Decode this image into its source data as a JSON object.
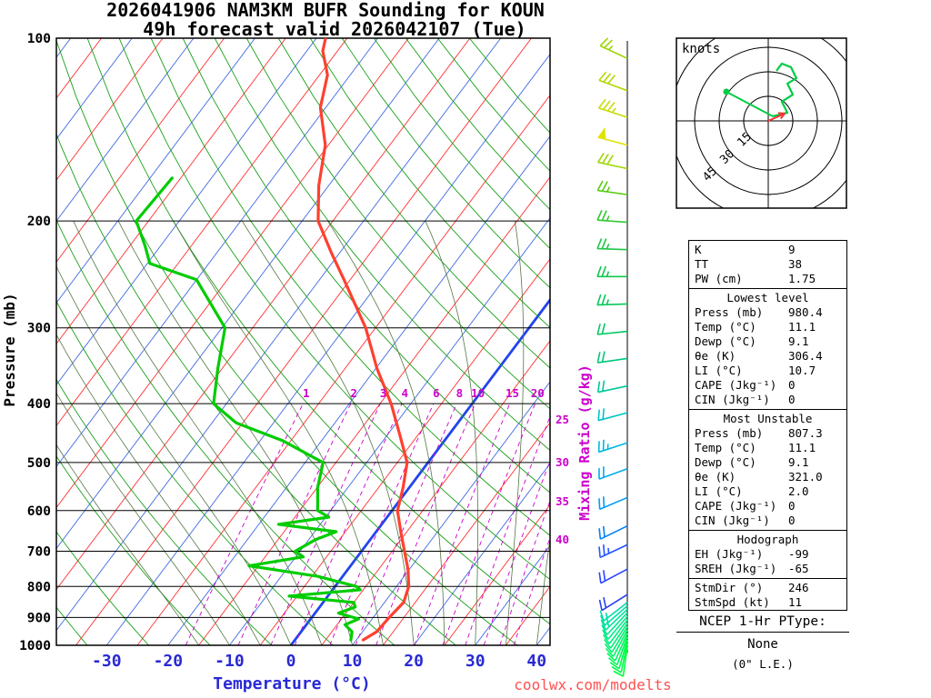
{
  "title": {
    "line1": "2026041906 NAM3KM BUFR Sounding for KOUN",
    "line2": "49h forecast valid 2026042107 (Tue)"
  },
  "axes": {
    "pressure_label": "Pressure (mb)",
    "temperature_label": "Temperature (°C)",
    "mixing_ratio_label": "Mixing Ratio (g/kg)",
    "pressure_ticks": [
      100,
      200,
      300,
      400,
      500,
      600,
      700,
      800,
      900,
      1000
    ],
    "temperature_ticks": [
      -30,
      -20,
      -10,
      0,
      10,
      20,
      30,
      40
    ],
    "mixing_ratio_values": [
      1,
      2,
      3,
      4,
      6,
      8,
      10,
      15,
      20,
      25,
      30,
      35,
      40
    ]
  },
  "colors": {
    "temperature_curve": "#ff4030",
    "dewpoint_curve": "#00cc00",
    "isotherm_red": "#ff3030",
    "isotherm_blue": "#4169e1",
    "zero_isotherm": "#2244ee",
    "dry_adiabat": "#18a018",
    "moist_adiabat": "#557744",
    "mixing_ratio": "#cc00cc",
    "axis_text_blue": "#2929d4",
    "watermark_red": "#ff5050",
    "barb_staff": "#000000"
  },
  "chart_data": {
    "type": "line",
    "title": "Skew-T log-P sounding with wind barbs and hodograph",
    "pressure_range_mb": [
      100,
      1000
    ],
    "temperature_range_c": [
      -30,
      40
    ],
    "temperature_profile": [
      [
        980,
        11.1
      ],
      [
        950,
        12.3
      ],
      [
        900,
        12.6
      ],
      [
        850,
        13.1
      ],
      [
        800,
        12.0
      ],
      [
        750,
        9.8
      ],
      [
        700,
        7.0
      ],
      [
        650,
        4.0
      ],
      [
        600,
        0.9
      ],
      [
        550,
        -1.0
      ],
      [
        500,
        -3.4
      ],
      [
        450,
        -8.0
      ],
      [
        400,
        -13.2
      ],
      [
        350,
        -19.8
      ],
      [
        300,
        -26.6
      ],
      [
        250,
        -36.0
      ],
      [
        225,
        -41.5
      ],
      [
        200,
        -47.4
      ],
      [
        175,
        -51.6
      ],
      [
        150,
        -55.5
      ],
      [
        130,
        -60.9
      ],
      [
        115,
        -63.7
      ],
      [
        105,
        -67.4
      ],
      [
        100,
        -68.5
      ]
    ],
    "dewpoint_profile": [
      [
        980,
        9.1
      ],
      [
        950,
        8.3
      ],
      [
        925,
        6.3
      ],
      [
        905,
        7.8
      ],
      [
        885,
        3.8
      ],
      [
        865,
        5.8
      ],
      [
        850,
        5.0
      ],
      [
        830,
        -6.3
      ],
      [
        810,
        4.5
      ],
      [
        800,
        3.5
      ],
      [
        770,
        -4.0
      ],
      [
        740,
        -16.5
      ],
      [
        715,
        -8.8
      ],
      [
        700,
        -10.8
      ],
      [
        670,
        -8.9
      ],
      [
        650,
        -6.5
      ],
      [
        632,
        -16.8
      ],
      [
        615,
        -9.5
      ],
      [
        600,
        -12.1
      ],
      [
        550,
        -14.9
      ],
      [
        500,
        -17.1
      ],
      [
        460,
        -26.4
      ],
      [
        430,
        -36.1
      ],
      [
        400,
        -42.1
      ],
      [
        350,
        -45.7
      ],
      [
        300,
        -49.5
      ],
      [
        250,
        -60.0
      ],
      [
        235,
        -69.6
      ],
      [
        220,
        -72.5
      ],
      [
        200,
        -77.0
      ],
      [
        170,
        -76.4
      ]
    ],
    "winds": [
      {
        "p": 108,
        "spd": 25,
        "dir": 295,
        "color": "#9cd600"
      },
      {
        "p": 122,
        "spd": 30,
        "dir": 290,
        "color": "#b2d800"
      },
      {
        "p": 135,
        "spd": 35,
        "dir": 288,
        "color": "#c8dc00"
      },
      {
        "p": 150,
        "spd": 50,
        "dir": 285,
        "color": "#e2e200"
      },
      {
        "p": 164,
        "spd": 30,
        "dir": 282,
        "color": "#9cd800"
      },
      {
        "p": 181,
        "spd": 25,
        "dir": 278,
        "color": "#58cc14"
      },
      {
        "p": 201,
        "spd": 25,
        "dir": 274,
        "color": "#32c832"
      },
      {
        "p": 223,
        "spd": 25,
        "dir": 272,
        "color": "#1ec846"
      },
      {
        "p": 247,
        "spd": 25,
        "dir": 270,
        "color": "#12c850"
      },
      {
        "p": 274,
        "spd": 25,
        "dir": 268,
        "color": "#08c85a"
      },
      {
        "p": 304,
        "spd": 20,
        "dir": 264,
        "color": "#00c864"
      },
      {
        "p": 337,
        "spd": 20,
        "dir": 262,
        "color": "#00c87c"
      },
      {
        "p": 374,
        "spd": 20,
        "dir": 258,
        "color": "#00c89c"
      },
      {
        "p": 414,
        "spd": 20,
        "dir": 255,
        "color": "#00c4c4"
      },
      {
        "p": 464,
        "spd": 25,
        "dir": 252,
        "color": "#00b8e2"
      },
      {
        "p": 512,
        "spd": 20,
        "dir": 250,
        "color": "#00acf0"
      },
      {
        "p": 571,
        "spd": 20,
        "dir": 247,
        "color": "#009cfa"
      },
      {
        "p": 636,
        "spd": 20,
        "dir": 244,
        "color": "#0080ff"
      },
      {
        "p": 683,
        "spd": 25,
        "dir": 245,
        "color": "#2255ff"
      },
      {
        "p": 749,
        "spd": 20,
        "dir": 242,
        "color": "#2a46ff"
      },
      {
        "p": 825,
        "spd": 18,
        "dir": 238,
        "color": "#2a40f0"
      },
      {
        "p": 850,
        "spd": 15,
        "dir": 232,
        "color": "#00dcae"
      },
      {
        "p": 861,
        "spd": 15,
        "dir": 229,
        "color": "#00e0a4"
      },
      {
        "p": 872,
        "spd": 15,
        "dir": 226,
        "color": "#00e49a"
      },
      {
        "p": 884,
        "spd": 12,
        "dir": 223,
        "color": "#00e890"
      },
      {
        "p": 896,
        "spd": 12,
        "dir": 220,
        "color": "#00ec86"
      },
      {
        "p": 908,
        "spd": 12,
        "dir": 217,
        "color": "#00ee7e"
      },
      {
        "p": 920,
        "spd": 10,
        "dir": 214,
        "color": "#00f076"
      },
      {
        "p": 932,
        "spd": 10,
        "dir": 211,
        "color": "#00f26e"
      },
      {
        "p": 944,
        "spd": 10,
        "dir": 208,
        "color": "#00f466"
      },
      {
        "p": 956,
        "spd": 10,
        "dir": 204,
        "color": "#00f65e"
      },
      {
        "p": 968,
        "spd": 10,
        "dir": 200,
        "color": "#00f856"
      },
      {
        "p": 980,
        "spd": 10,
        "dir": 196,
        "color": "#00fa4e"
      },
      {
        "p": 992,
        "spd": 10,
        "dir": 192,
        "color": "#00fc46"
      },
      {
        "p": 1005,
        "spd": 8,
        "dir": 188,
        "color": "#00fe3e"
      }
    ],
    "hodograph": {
      "unit_label": "knots",
      "ring_labels": [
        15,
        30,
        45
      ],
      "ring_spacing_kt": 15,
      "trace_uv": [
        [
          2.8,
          2.8
        ],
        [
          11.7,
          5.0
        ],
        [
          8.3,
          11.7
        ],
        [
          15.0,
          16.1
        ],
        [
          11.7,
          22.8
        ],
        [
          17.2,
          26.1
        ],
        [
          13.9,
          32.8
        ],
        [
          8.3,
          35.0
        ],
        [
          5.0,
          30.6
        ]
      ],
      "marker_uv": [
        -25.6,
        17.8
      ],
      "storm_motion_uv": [
        10.0,
        4.5
      ],
      "trace_color": "#00cc44",
      "storm_color": "#ff3333"
    }
  },
  "stats": {
    "sections": [
      {
        "rows": [
          [
            "K",
            "9"
          ],
          [
            "TT",
            "38"
          ],
          [
            "PW (cm)",
            "1.75"
          ]
        ]
      },
      {
        "header": "Lowest level",
        "rows": [
          [
            "Press (mb)",
            "980.4"
          ],
          [
            "Temp (°C)",
            "11.1"
          ],
          [
            "Dewp (°C)",
            "9.1"
          ],
          [
            "θe (K)",
            "306.4"
          ],
          [
            "LI (°C)",
            "10.7"
          ],
          [
            "CAPE (Jkg⁻¹)",
            "0"
          ],
          [
            "CIN (Jkg⁻¹)",
            "0"
          ]
        ]
      },
      {
        "header": "Most Unstable",
        "rows": [
          [
            "Press (mb)",
            "807.3"
          ],
          [
            "Temp (°C)",
            "11.1"
          ],
          [
            "Dewp (°C)",
            "9.1"
          ],
          [
            "θe (K)",
            "321.0"
          ],
          [
            "LI (°C)",
            "2.0"
          ],
          [
            "CAPE (Jkg⁻¹)",
            "0"
          ],
          [
            "CIN (Jkg⁻¹)",
            "0"
          ]
        ]
      },
      {
        "header": "Hodograph",
        "rows": [
          [
            "EH (Jkg⁻¹)",
            "-99"
          ],
          [
            "SREH (Jkg⁻¹)",
            "-65"
          ]
        ]
      },
      {
        "rows": [
          [
            "StmDir (°)",
            "246"
          ],
          [
            "StmSpd (kt)",
            "11"
          ]
        ]
      }
    ]
  },
  "footer": {
    "watermark": "coolwx.com/modelts",
    "ptype_label": "NCEP 1-Hr PType:",
    "ptype_value": "None",
    "ptype_le": "(0\" L.E.)"
  }
}
